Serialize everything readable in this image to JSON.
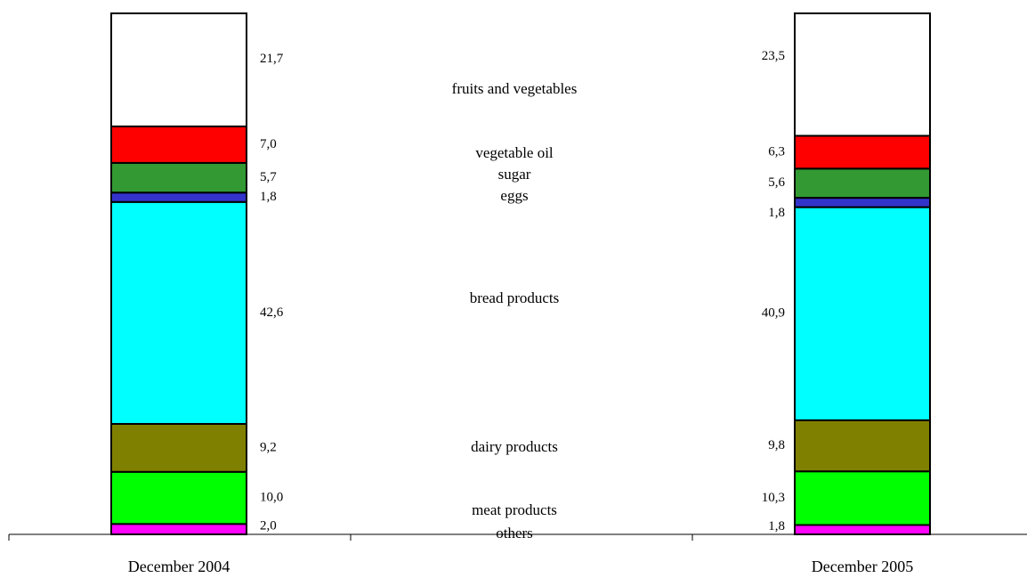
{
  "chart_data": {
    "type": "bar",
    "stacked": true,
    "percent_stacked": true,
    "categories": [
      "December 2004",
      "December 2005"
    ],
    "series": [
      {
        "name": "others",
        "values": [
          2.0,
          1.8
        ],
        "labels": [
          "2,0",
          "1,8"
        ],
        "color": "#ff00ff"
      },
      {
        "name": "meat products",
        "values": [
          10.0,
          10.3
        ],
        "labels": [
          "10,0",
          "10,3"
        ],
        "color": "#00ff00"
      },
      {
        "name": "dairy products",
        "values": [
          9.2,
          9.8
        ],
        "labels": [
          "9,2",
          "9,8"
        ],
        "color": "#808000"
      },
      {
        "name": "bread products",
        "values": [
          42.6,
          40.9
        ],
        "labels": [
          "42,6",
          "40,9"
        ],
        "color": "#00ffff"
      },
      {
        "name": "eggs",
        "values": [
          1.8,
          1.8
        ],
        "labels": [
          "1,8",
          "1,8"
        ],
        "color": "#3333cc"
      },
      {
        "name": "sugar",
        "values": [
          5.7,
          5.6
        ],
        "labels": [
          "5,7",
          "5,6"
        ],
        "color": "#339933"
      },
      {
        "name": "vegetable oil",
        "values": [
          7.0,
          6.3
        ],
        "labels": [
          "7,0",
          "6,3"
        ],
        "color": "#ff0000"
      },
      {
        "name": "fruits and vegetables",
        "values": [
          21.7,
          23.5
        ],
        "labels": [
          "21,7",
          "23,5"
        ],
        "color": "#ffffff"
      }
    ],
    "ylim": [
      0,
      100
    ],
    "grid": false,
    "legend": "series names printed between the two bars"
  }
}
